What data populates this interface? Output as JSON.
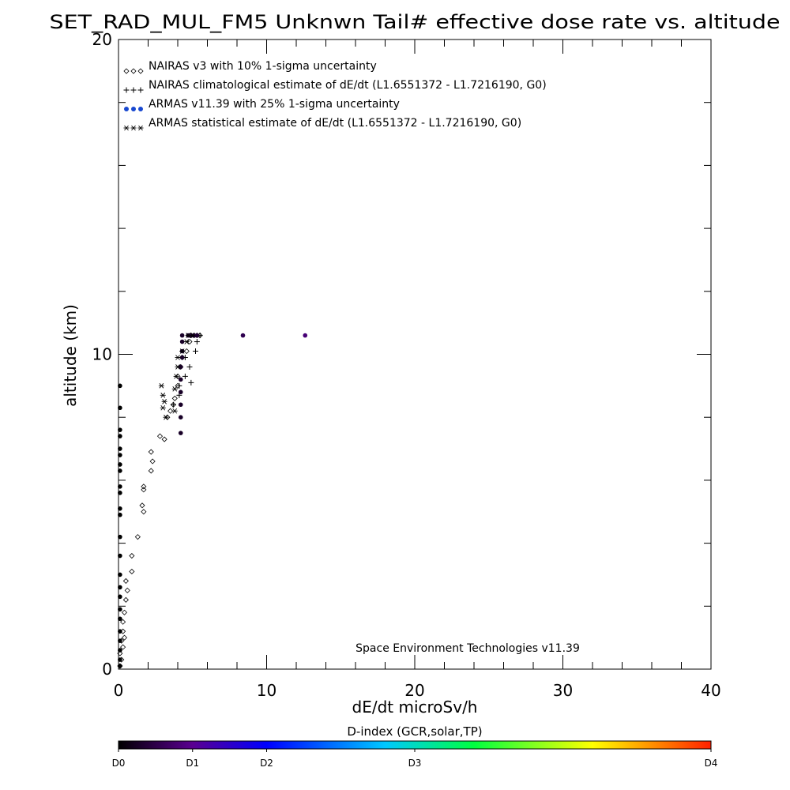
{
  "chart_data": {
    "type": "scatter",
    "title": "SET_RAD_MUL_FM5 Unknwn Tail#  effective dose rate vs. altitude",
    "xlabel": "dE/dt microSv/h",
    "ylabel": "altitude (km)",
    "xlim": [
      0,
      40
    ],
    "ylim": [
      0,
      20
    ],
    "x_ticks": [
      "0",
      "10",
      "20",
      "30",
      "40"
    ],
    "y_ticks": [
      "0",
      "10",
      "20"
    ],
    "legend": [
      {
        "symbol": "◇◇◇",
        "label": "NAIRAS v3 with 10% 1-sigma uncertainty"
      },
      {
        "symbol": "+++",
        "label": "NAIRAS climatological estimate of dE/dt (L1.6551372 - L1.7216190, G0)"
      },
      {
        "symbol": "●●●",
        "label": "ARMAS v11.39 with 25% 1-sigma uncertainty"
      },
      {
        "symbol": "✱✱✱",
        "label": "ARMAS statistical estimate of dE/dt (L1.6551372 - L1.7216190, G0)"
      }
    ],
    "legend_position": "top-left",
    "annotation": "Space Environment Technologies v11.39",
    "colorbar": {
      "title": "D-index (GCR,solar,TP)",
      "labels": [
        "D0",
        "D1",
        "D2",
        "D3",
        "D4"
      ],
      "label_positions": [
        0,
        0.125,
        0.25,
        0.5,
        1.0
      ],
      "colors": [
        "#000000",
        "#5a0090",
        "#0000ff",
        "#00c8ff",
        "#00ff00",
        "#ffff00",
        "#ff0000"
      ]
    },
    "series": [
      {
        "name": "NAIRAS v3 with 10% 1-sigma uncertainty",
        "marker": "diamond",
        "points": [
          [
            0.1,
            0.1
          ],
          [
            0.2,
            0.3
          ],
          [
            0.1,
            0.5
          ],
          [
            0.3,
            0.7
          ],
          [
            0.2,
            0.9
          ],
          [
            0.4,
            1.0
          ],
          [
            0.3,
            1.2
          ],
          [
            0.3,
            1.5
          ],
          [
            0.4,
            1.8
          ],
          [
            0.5,
            2.2
          ],
          [
            0.6,
            2.5
          ],
          [
            0.5,
            2.8
          ],
          [
            0.9,
            3.1
          ],
          [
            0.9,
            3.6
          ],
          [
            1.3,
            4.2
          ],
          [
            1.7,
            5.0
          ],
          [
            1.6,
            5.2
          ],
          [
            1.7,
            5.7
          ],
          [
            1.7,
            5.8
          ],
          [
            2.2,
            6.3
          ],
          [
            2.3,
            6.6
          ],
          [
            2.2,
            6.9
          ],
          [
            2.8,
            7.4
          ],
          [
            3.1,
            7.3
          ],
          [
            3.3,
            8.0
          ],
          [
            3.5,
            8.2
          ],
          [
            3.7,
            8.4
          ],
          [
            3.8,
            8.6
          ],
          [
            4.0,
            9.0
          ],
          [
            4.0,
            9.3
          ],
          [
            4.2,
            9.6
          ],
          [
            4.3,
            9.9
          ],
          [
            4.6,
            10.1
          ],
          [
            4.8,
            10.4
          ],
          [
            4.9,
            10.6
          ],
          [
            5.1,
            10.6
          ],
          [
            5.3,
            10.6
          ],
          [
            5.5,
            10.6
          ]
        ]
      },
      {
        "name": "NAIRAS climatological estimate of dE/dt (L1.6551372 - L1.7216190, G0)",
        "marker": "plus",
        "points": [
          [
            3.7,
            8.4
          ],
          [
            4.1,
            8.7
          ],
          [
            4.1,
            9.0
          ],
          [
            4.9,
            9.1
          ],
          [
            4.5,
            9.3
          ],
          [
            4.8,
            9.6
          ],
          [
            4.5,
            9.9
          ],
          [
            5.2,
            10.1
          ],
          [
            5.3,
            10.4
          ],
          [
            5.5,
            10.6
          ]
        ]
      },
      {
        "name": "ARMAS v11.39 with 25% 1-sigma uncertainty",
        "marker": "dot",
        "points": [
          [
            0.1,
            0.1
          ],
          [
            0.1,
            0.3
          ],
          [
            0.1,
            0.6
          ],
          [
            0.1,
            0.9
          ],
          [
            0.1,
            1.2
          ],
          [
            0.1,
            1.6
          ],
          [
            0.1,
            1.9
          ],
          [
            0.1,
            2.3
          ],
          [
            0.1,
            2.6
          ],
          [
            0.1,
            3.0
          ],
          [
            0.1,
            3.6
          ],
          [
            0.1,
            4.2
          ],
          [
            0.1,
            4.9
          ],
          [
            0.1,
            5.1
          ],
          [
            0.1,
            5.6
          ],
          [
            0.1,
            5.8
          ],
          [
            0.1,
            6.3
          ],
          [
            0.1,
            6.5
          ],
          [
            0.1,
            6.8
          ],
          [
            0.1,
            7.0
          ],
          [
            0.1,
            7.4
          ],
          [
            0.1,
            7.6
          ],
          [
            0.1,
            8.3
          ],
          [
            0.1,
            9.0
          ],
          [
            4.2,
            7.5
          ],
          [
            4.2,
            8.0
          ],
          [
            4.2,
            8.4
          ],
          [
            4.2,
            8.8
          ],
          [
            4.2,
            9.2
          ],
          [
            4.2,
            9.6
          ],
          [
            4.3,
            9.9
          ],
          [
            4.3,
            10.1
          ],
          [
            4.3,
            10.4
          ],
          [
            4.3,
            10.6
          ],
          [
            4.7,
            10.6
          ],
          [
            4.9,
            10.6
          ],
          [
            5.1,
            10.6
          ],
          [
            5.3,
            10.6
          ],
          [
            8.4,
            10.6
          ],
          [
            12.6,
            10.6
          ]
        ]
      },
      {
        "name": "ARMAS statistical estimate of dE/dt (L1.6551372 - L1.7216190, G0)",
        "marker": "asterisk",
        "points": [
          [
            2.9,
            9.0
          ],
          [
            3.0,
            8.7
          ],
          [
            3.0,
            8.3
          ],
          [
            3.1,
            8.5
          ],
          [
            3.2,
            8.0
          ],
          [
            3.8,
            8.2
          ],
          [
            3.8,
            8.9
          ],
          [
            3.9,
            9.3
          ],
          [
            4.0,
            9.6
          ],
          [
            4.0,
            9.9
          ],
          [
            4.3,
            10.1
          ],
          [
            4.6,
            10.4
          ],
          [
            4.7,
            10.6
          ],
          [
            5.0,
            10.6
          ]
        ]
      }
    ]
  }
}
